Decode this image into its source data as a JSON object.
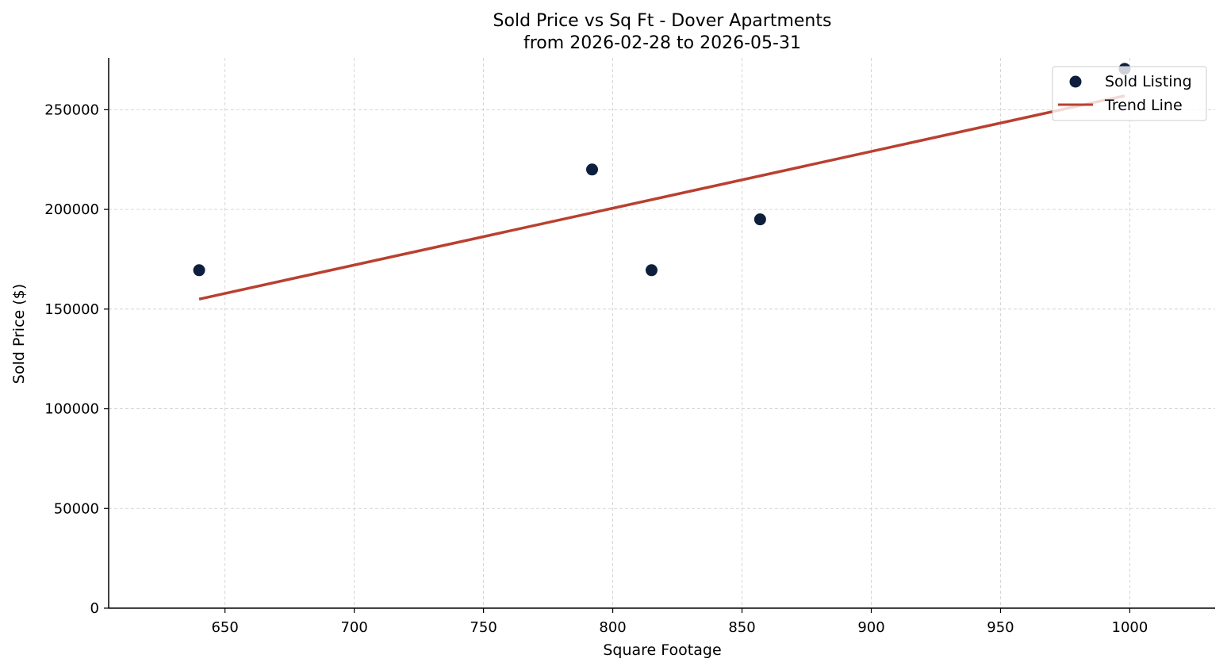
{
  "chart_data": {
    "type": "scatter",
    "title": "Sold Price vs Sq Ft - Dover Apartments",
    "subtitle": "from 2026-02-28 to 2026-05-31",
    "xlabel": "Square Footage",
    "ylabel": "Sold Price ($)",
    "xlim": [
      605,
      1033
    ],
    "ylim": [
      0,
      276000
    ],
    "xticks": [
      650,
      700,
      750,
      800,
      850,
      900,
      950,
      1000
    ],
    "yticks": [
      0,
      50000,
      100000,
      150000,
      200000,
      250000
    ],
    "grid": true,
    "legend_position": "top-right",
    "series": [
      {
        "name": "Sold Listing",
        "kind": "scatter",
        "color": "#0d1f3c",
        "x": [
          640,
          792,
          815,
          857,
          998
        ],
        "y": [
          169500,
          220000,
          169500,
          195000,
          270500
        ]
      },
      {
        "name": "Trend Line",
        "kind": "line",
        "color": "#b94030",
        "x": [
          640,
          998
        ],
        "y": [
          155000,
          257000
        ]
      }
    ]
  }
}
